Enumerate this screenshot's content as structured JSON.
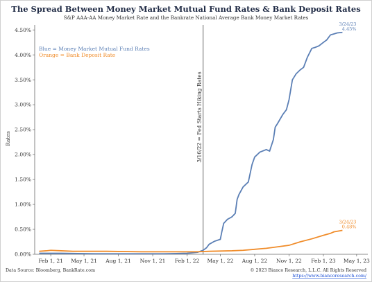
{
  "chart_data": {
    "type": "line",
    "title": "The Spread Between Money Market Mutual Fund Rates & Bank Deposit Rates",
    "subtitle": "S&P AAA-AA Money Market Rate and the Bankrate National Average Bank Money Market Rates",
    "ylabel": "Rates",
    "xlabel": "",
    "ylim": [
      0,
      4.6
    ],
    "xlim": [
      "2020-12-20",
      "2023-05-31"
    ],
    "grid": false,
    "yticks": [
      0,
      0.5,
      1.0,
      1.5,
      2.0,
      2.5,
      3.0,
      3.5,
      4.0,
      4.5
    ],
    "ytick_labels": [
      "0.00%",
      "0.50%",
      "1.00%",
      "1.50%",
      "2.00%",
      "2.50%",
      "3.00%",
      "3.50%",
      "4.00%",
      "4.50%"
    ],
    "xticks": [
      "2021-02-01",
      "2021-05-01",
      "2021-08-01",
      "2021-11-01",
      "2022-02-01",
      "2022-05-01",
      "2022-08-01",
      "2022-11-01",
      "2023-02-01",
      "2023-05-01"
    ],
    "xtick_labels": [
      "Feb 1, 21",
      "May 1, 21",
      "Aug 1, 21",
      "Nov 1, 21",
      "Feb 1, 22",
      "May 1, 22",
      "Aug 1, 22",
      "Nov 1, 22",
      "Feb 1, 23",
      "May 1, 23"
    ],
    "legend_text": [
      "Blue = Money Market Mutual Fund Rates",
      "Orange = Bank Deposit Rate"
    ],
    "legend_placement": "top-left",
    "colors": {
      "blue": "#5b7fb5",
      "orange": "#f08c2a",
      "vline": "#555555",
      "title": "#1f2a44"
    },
    "vline": {
      "x": "2022-03-16",
      "label": "3/16/22 = Fed Starts Hiking Rates"
    },
    "series": [
      {
        "color": "blue",
        "end_date_label": "3/24/23",
        "end_value_label": "4.45%",
        "points": [
          [
            "2021-01-01",
            0.02
          ],
          [
            "2021-03-01",
            0.02
          ],
          [
            "2021-06-01",
            0.01
          ],
          [
            "2021-09-01",
            0.01
          ],
          [
            "2021-12-01",
            0.01
          ],
          [
            "2022-02-01",
            0.02
          ],
          [
            "2022-03-01",
            0.04
          ],
          [
            "2022-03-16",
            0.08
          ],
          [
            "2022-03-25",
            0.13
          ],
          [
            "2022-04-01",
            0.2
          ],
          [
            "2022-04-15",
            0.26
          ],
          [
            "2022-05-01",
            0.3
          ],
          [
            "2022-05-05",
            0.45
          ],
          [
            "2022-05-10",
            0.62
          ],
          [
            "2022-05-20",
            0.7
          ],
          [
            "2022-06-01",
            0.75
          ],
          [
            "2022-06-10",
            0.82
          ],
          [
            "2022-06-15",
            1.1
          ],
          [
            "2022-06-20",
            1.2
          ],
          [
            "2022-07-01",
            1.35
          ],
          [
            "2022-07-15",
            1.45
          ],
          [
            "2022-07-25",
            1.8
          ],
          [
            "2022-08-01",
            1.95
          ],
          [
            "2022-08-15",
            2.05
          ],
          [
            "2022-09-01",
            2.1
          ],
          [
            "2022-09-10",
            2.07
          ],
          [
            "2022-09-20",
            2.3
          ],
          [
            "2022-09-25",
            2.55
          ],
          [
            "2022-10-01",
            2.62
          ],
          [
            "2022-10-15",
            2.8
          ],
          [
            "2022-10-25",
            2.9
          ],
          [
            "2022-11-01",
            3.1
          ],
          [
            "2022-11-10",
            3.5
          ],
          [
            "2022-11-20",
            3.62
          ],
          [
            "2022-12-01",
            3.7
          ],
          [
            "2022-12-10",
            3.75
          ],
          [
            "2022-12-20",
            3.95
          ],
          [
            "2023-01-01",
            4.13
          ],
          [
            "2023-01-10",
            4.15
          ],
          [
            "2023-01-20",
            4.18
          ],
          [
            "2023-02-01",
            4.25
          ],
          [
            "2023-02-10",
            4.3
          ],
          [
            "2023-02-20",
            4.4
          ],
          [
            "2023-03-01",
            4.42
          ],
          [
            "2023-03-10",
            4.44
          ],
          [
            "2023-03-24",
            4.45
          ]
        ]
      },
      {
        "color": "orange",
        "end_date_label": "3/24/23",
        "end_value_label": "0.48%",
        "points": [
          [
            "2021-01-01",
            0.06
          ],
          [
            "2021-01-20",
            0.07
          ],
          [
            "2021-02-01",
            0.08
          ],
          [
            "2021-03-01",
            0.07
          ],
          [
            "2021-04-01",
            0.06
          ],
          [
            "2021-07-01",
            0.06
          ],
          [
            "2021-10-01",
            0.05
          ],
          [
            "2022-01-01",
            0.05
          ],
          [
            "2022-03-01",
            0.05
          ],
          [
            "2022-04-01",
            0.06
          ],
          [
            "2022-06-01",
            0.07
          ],
          [
            "2022-07-01",
            0.08
          ],
          [
            "2022-08-01",
            0.1
          ],
          [
            "2022-09-01",
            0.12
          ],
          [
            "2022-10-01",
            0.15
          ],
          [
            "2022-11-01",
            0.18
          ],
          [
            "2022-12-01",
            0.25
          ],
          [
            "2023-01-01",
            0.31
          ],
          [
            "2023-02-01",
            0.38
          ],
          [
            "2023-02-20",
            0.42
          ],
          [
            "2023-03-01",
            0.45
          ],
          [
            "2023-03-24",
            0.48
          ]
        ]
      }
    ]
  },
  "footer": {
    "source": "Data Source: Bloomberg, BankRate.com",
    "copyright": "© 2023 Bianco Research, L.L.C. All Rights Reserved",
    "url": "https://www.biancoresearch.com/"
  }
}
